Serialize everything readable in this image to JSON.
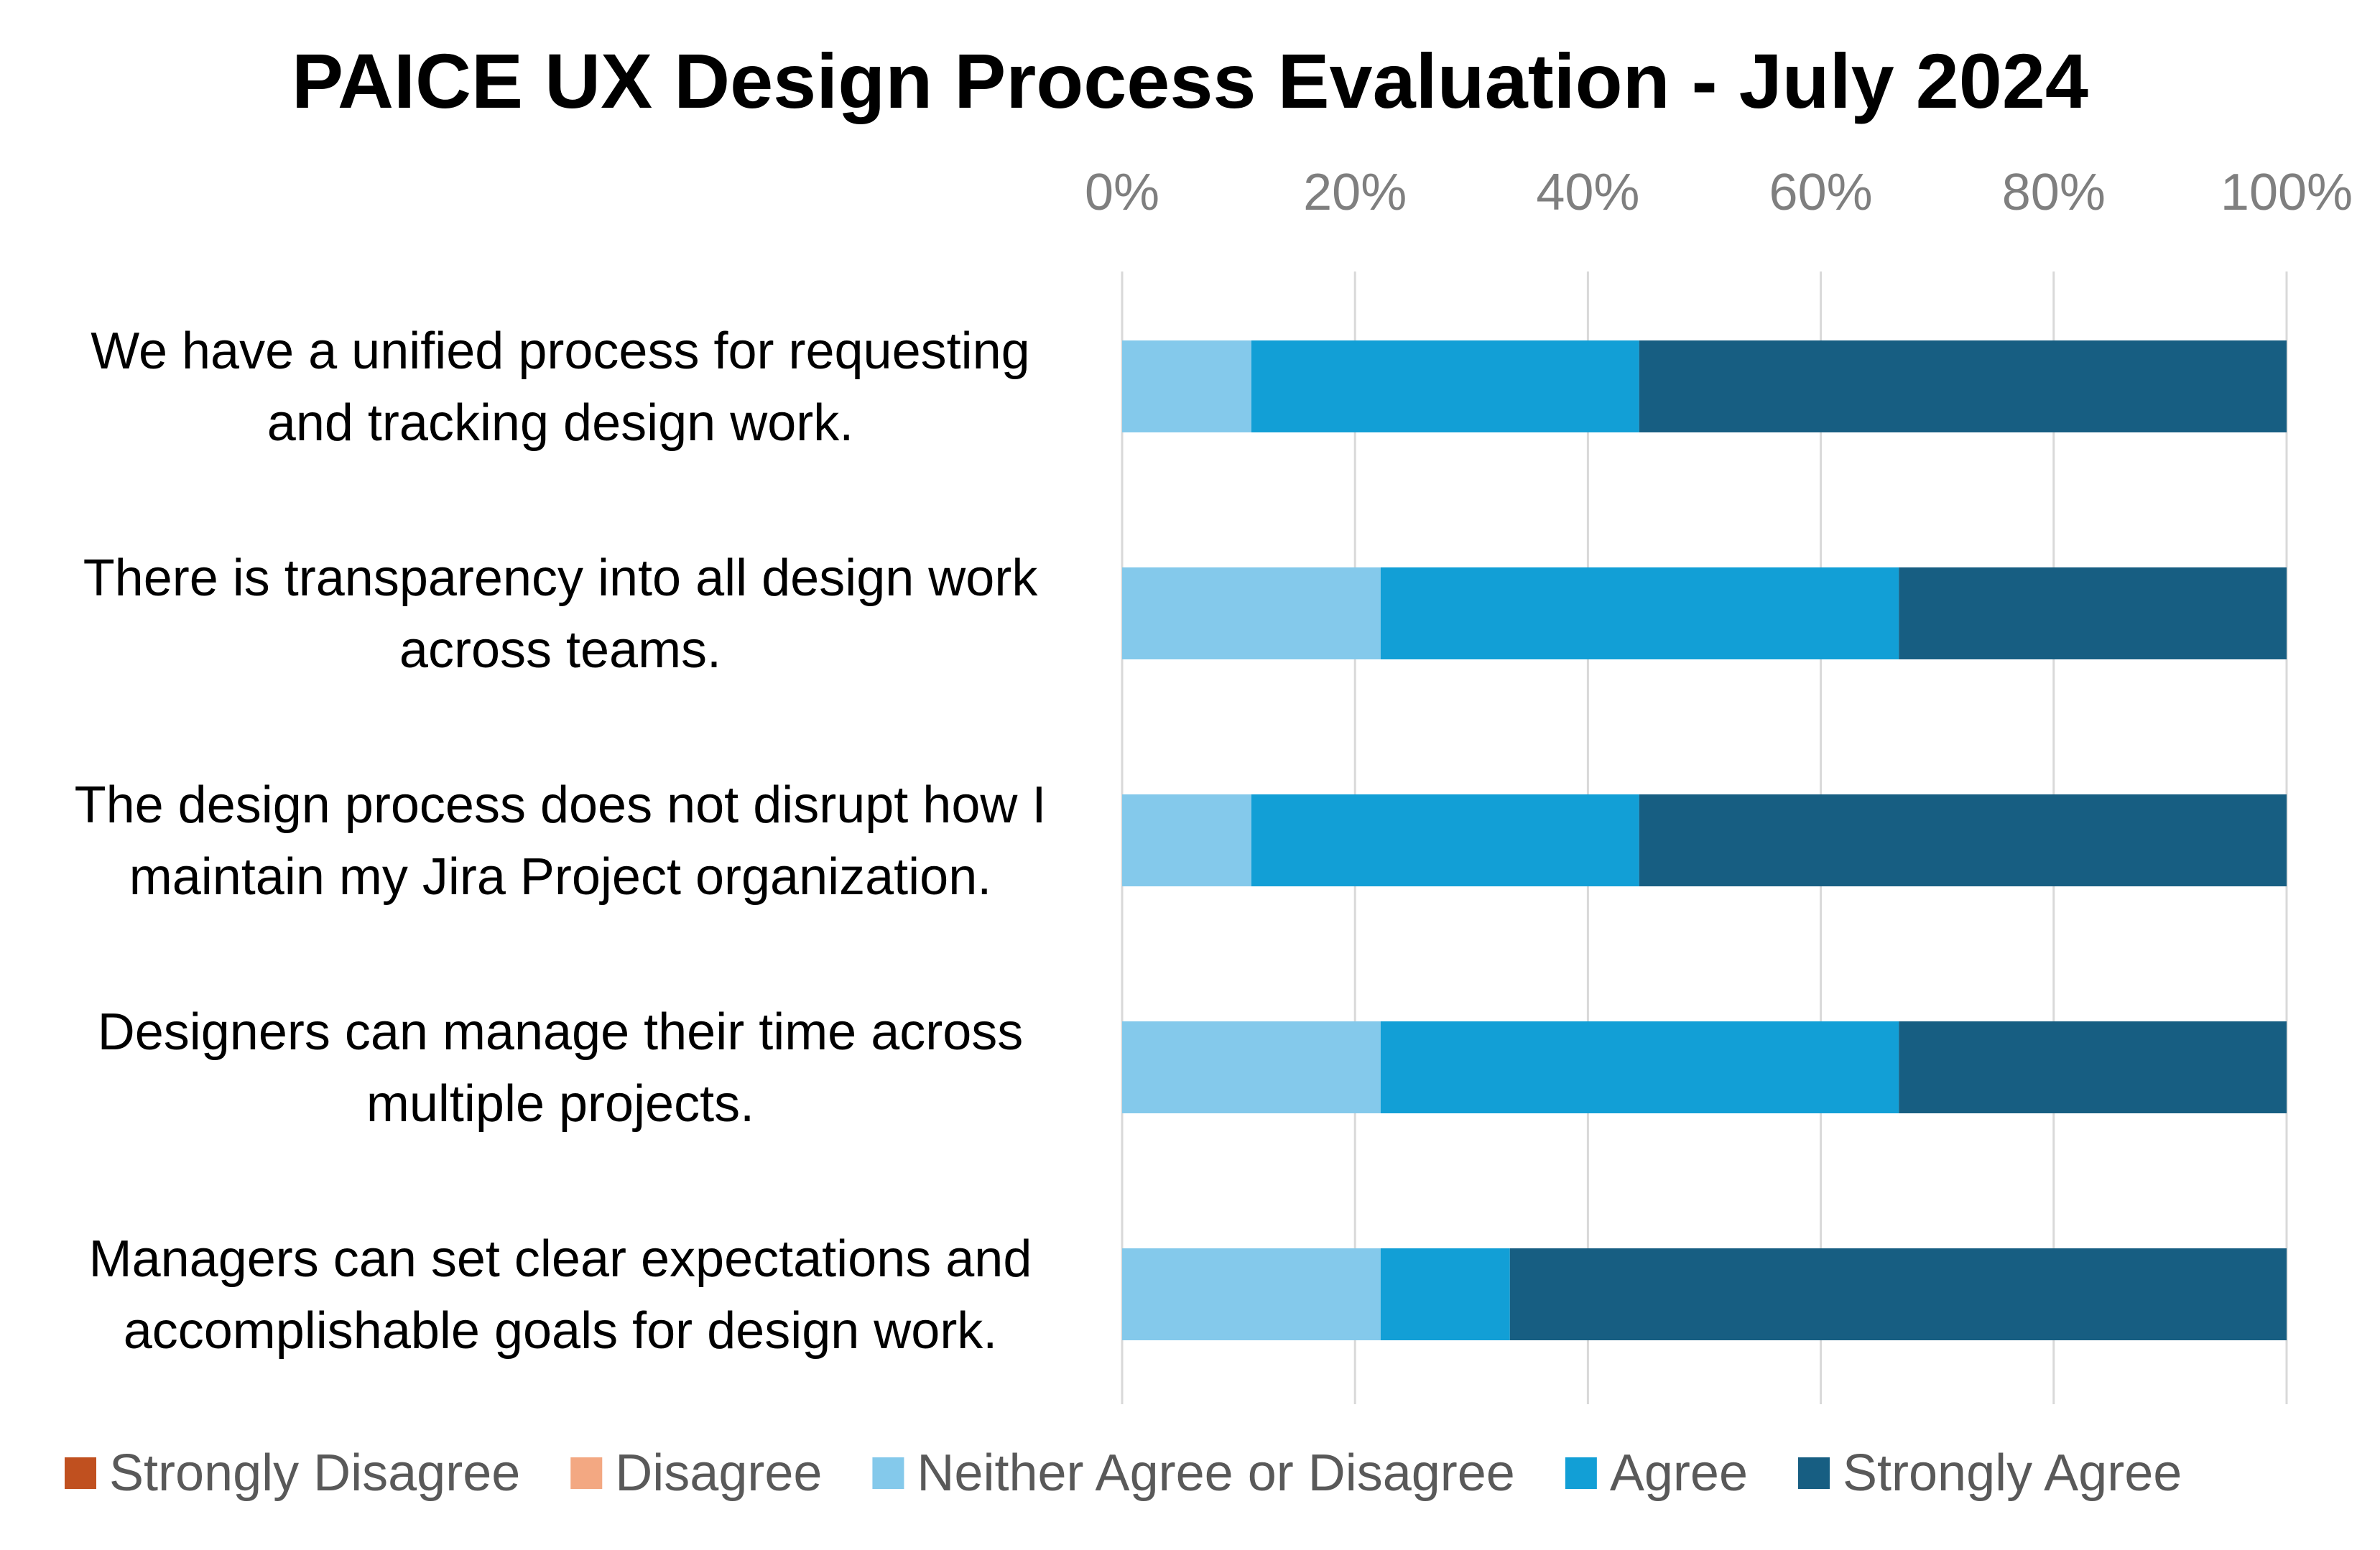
{
  "chart_data": {
    "type": "bar",
    "orientation": "horizontal",
    "stacked": "100%",
    "title": "PAICE UX Design Process Evaluation - July 2024",
    "x_axis_position": "top",
    "xlim": [
      0,
      100
    ],
    "x_ticks": [
      "0%",
      "20%",
      "40%",
      "60%",
      "80%",
      "100%"
    ],
    "grid": true,
    "legend_position": "bottom",
    "categories": [
      [
        "We have a unified process for requesting",
        "and tracking design work."
      ],
      [
        "There is transparency into all design work",
        "across teams."
      ],
      [
        "The design process does not disrupt how I",
        "maintain my Jira Project organization."
      ],
      [
        "Designers can manage their time across",
        "multiple projects."
      ],
      [
        "Managers can set clear expectations and",
        "accomplishable goals for design work."
      ]
    ],
    "series": [
      {
        "name": "Strongly Disagree",
        "color": "#c0501f",
        "values": [
          0,
          0,
          0,
          0,
          0
        ]
      },
      {
        "name": "Disagree",
        "color": "#f3a882",
        "values": [
          0,
          0,
          0,
          0,
          0
        ]
      },
      {
        "name": "Neither Agree or Disagree",
        "color": "#84c9eb",
        "values": [
          11.1,
          22.2,
          11.1,
          22.2,
          22.2
        ]
      },
      {
        "name": "Agree",
        "color": "#129fd6",
        "values": [
          33.3,
          44.5,
          33.3,
          44.5,
          11.1
        ]
      },
      {
        "name": "Strongly Agree",
        "color": "#175e82",
        "values": [
          55.6,
          33.3,
          55.6,
          33.3,
          66.7
        ]
      }
    ]
  }
}
